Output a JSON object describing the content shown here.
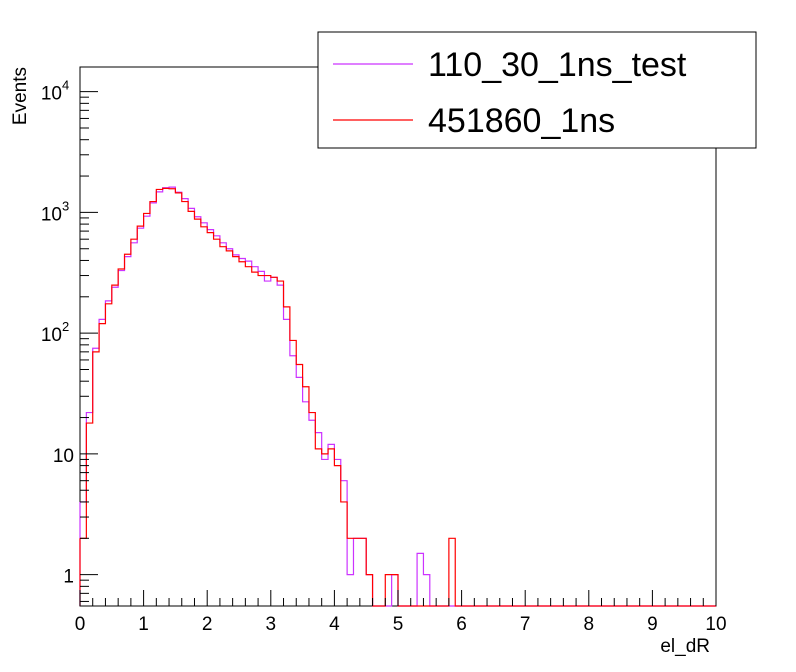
{
  "chart_data": {
    "type": "line",
    "histogram": true,
    "xlabel": "el_dR",
    "ylabel": "Events",
    "xlim": [
      0,
      10
    ],
    "ylim": [
      0.55,
      16000
    ],
    "y_scale": "log",
    "x_ticks": [
      "0",
      "1",
      "2",
      "3",
      "4",
      "5",
      "6",
      "7",
      "8",
      "9",
      "10"
    ],
    "y_ticks": [
      {
        "value": 1,
        "base": "1",
        "exp": ""
      },
      {
        "value": 10,
        "base": "10",
        "exp": ""
      },
      {
        "value": 100,
        "base": "10",
        "exp": "2"
      },
      {
        "value": 1000,
        "base": "10",
        "exp": "3"
      },
      {
        "value": 10000,
        "base": "10",
        "exp": "4"
      }
    ],
    "bin_width": 0.1,
    "legend_position": "top-right",
    "grid": false,
    "series": [
      {
        "name": "110_30_1ns_test",
        "color": "#cc33ff",
        "values": [
          4,
          22,
          75,
          130,
          185,
          240,
          330,
          430,
          560,
          740,
          930,
          1200,
          1480,
          1600,
          1620,
          1470,
          1300,
          1080,
          920,
          820,
          720,
          640,
          560,
          500,
          445,
          415,
          395,
          355,
          325,
          270,
          290,
          250,
          130,
          65,
          43,
          27,
          19,
          15,
          9,
          12,
          9,
          6,
          1,
          2,
          2,
          1,
          0.5,
          0.5,
          0.5,
          1,
          0.5,
          0.5,
          0.5,
          1.5,
          1,
          0.5,
          0.5,
          0.5,
          0.5,
          0.5,
          0.5,
          0.5,
          0.5,
          0.5,
          0.5,
          0.5,
          0.5,
          0.5,
          0.5,
          0.5,
          0.5,
          0.5,
          0.5,
          0.5,
          0.5,
          0.5,
          0.5,
          0.5,
          0.5,
          0.5,
          0.5,
          0.5,
          0.5,
          0.5,
          0.5,
          0.5,
          0.5,
          0.5,
          0.5,
          0.5,
          0.5,
          0.5,
          0.5,
          0.5,
          0.5,
          0.5,
          0.5,
          0.5,
          0.5,
          0.5
        ]
      },
      {
        "name": "451860_1ns",
        "color": "#ff0000",
        "values": [
          2,
          18,
          70,
          120,
          175,
          250,
          340,
          450,
          600,
          770,
          980,
          1230,
          1550,
          1580,
          1570,
          1450,
          1230,
          1020,
          880,
          760,
          680,
          600,
          520,
          480,
          430,
          390,
          355,
          320,
          300,
          300,
          290,
          270,
          165,
          87,
          55,
          36,
          22,
          11,
          10,
          11,
          8,
          4,
          2,
          2,
          2,
          1,
          0.5,
          0.5,
          1,
          1,
          0.5,
          0.5,
          0.5,
          0.5,
          0.5,
          0.5,
          0.5,
          0.5,
          2,
          0.5,
          0.5,
          0.5,
          0.5,
          0.5,
          0.5,
          0.5,
          0.5,
          0.5,
          0.5,
          0.5,
          0.5,
          0.5,
          0.5,
          0.5,
          0.5,
          0.5,
          0.5,
          0.5,
          0.5,
          0.5,
          0.5,
          0.5,
          0.5,
          0.5,
          0.5,
          0.5,
          0.5,
          0.5,
          0.5,
          0.5,
          0.5,
          0.5,
          0.5,
          0.5,
          0.5,
          0.5,
          0.5,
          0.5,
          0.5,
          0.5
        ]
      }
    ]
  }
}
